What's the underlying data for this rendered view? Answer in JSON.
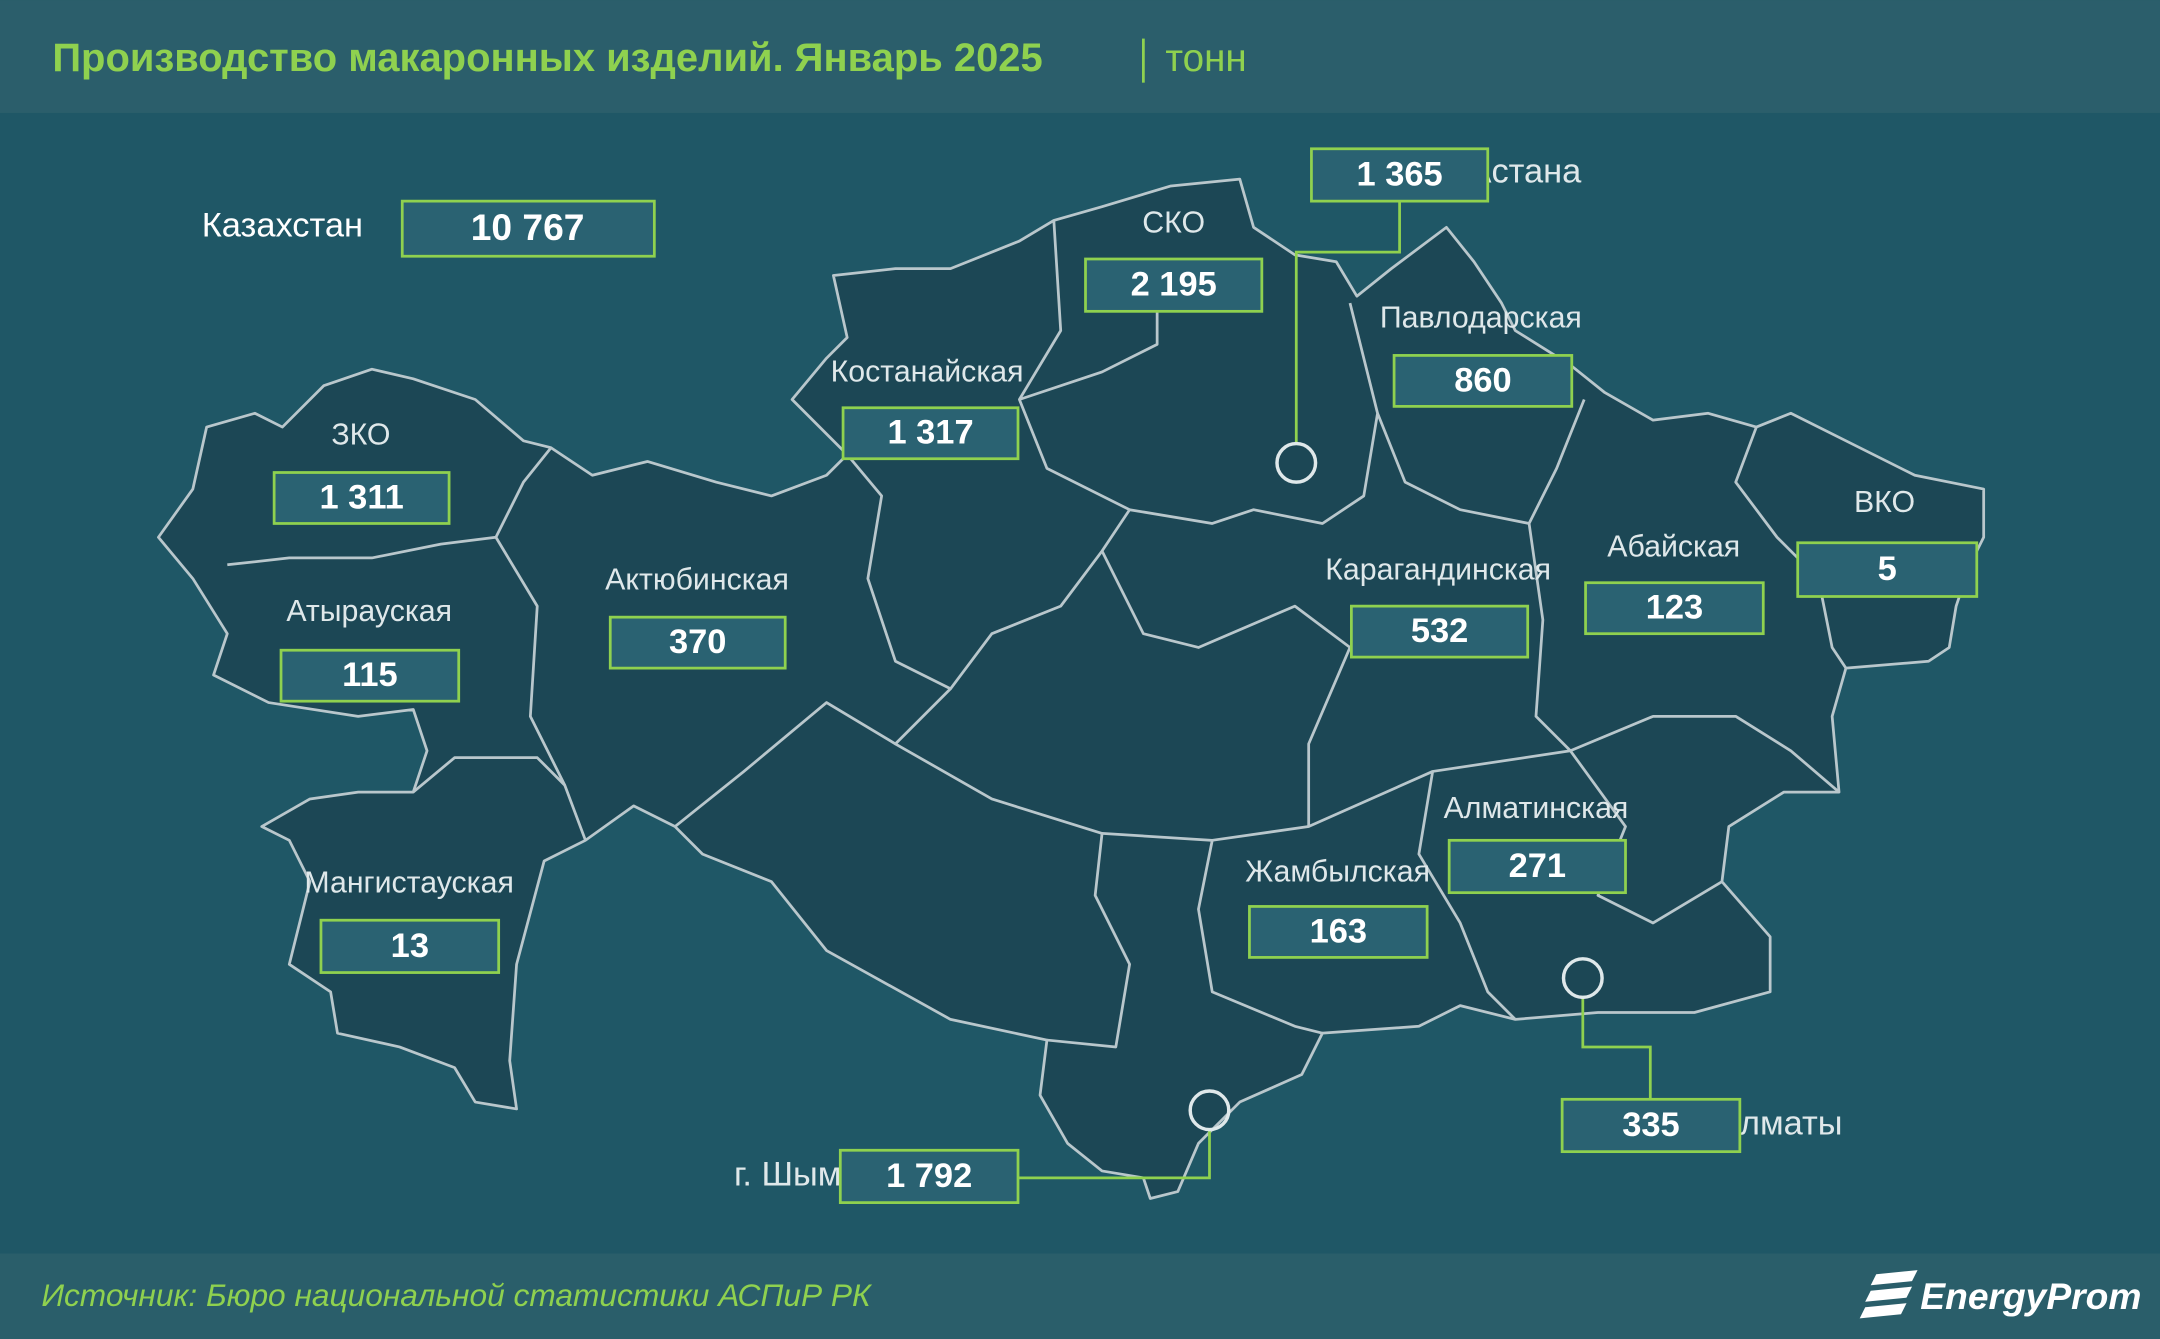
{
  "header": {
    "title": "Производство макаронных изделий. Январь 2025",
    "unit": "тонн"
  },
  "total": {
    "label": "Казахстан",
    "value": "10 767"
  },
  "regions": [
    {
      "name": "СКО",
      "value": "2 195"
    },
    {
      "name": "г. Астана",
      "value": "1 365"
    },
    {
      "name": "Павлодарская",
      "value": "860"
    },
    {
      "name": "Костанайская",
      "value": "1 317"
    },
    {
      "name": "ЗКО",
      "value": "1 311"
    },
    {
      "name": "Актюбинская",
      "value": "370"
    },
    {
      "name": "Атырауская",
      "value": "115"
    },
    {
      "name": "Карагандинская",
      "value": "532"
    },
    {
      "name": "Абайская",
      "value": "123"
    },
    {
      "name": "ВКО",
      "value": "5"
    },
    {
      "name": "Алматинская",
      "value": "271"
    },
    {
      "name": "Жамбылская",
      "value": "163"
    },
    {
      "name": "Мангистауская",
      "value": "13"
    },
    {
      "name": "г. Шымкент",
      "value": "1 792"
    },
    {
      "name": "г. Алматы",
      "value": "335"
    }
  ],
  "footer": {
    "source": "Источник: Бюро национальной статистики АСПиР РК",
    "logo": "EnergyProm"
  }
}
